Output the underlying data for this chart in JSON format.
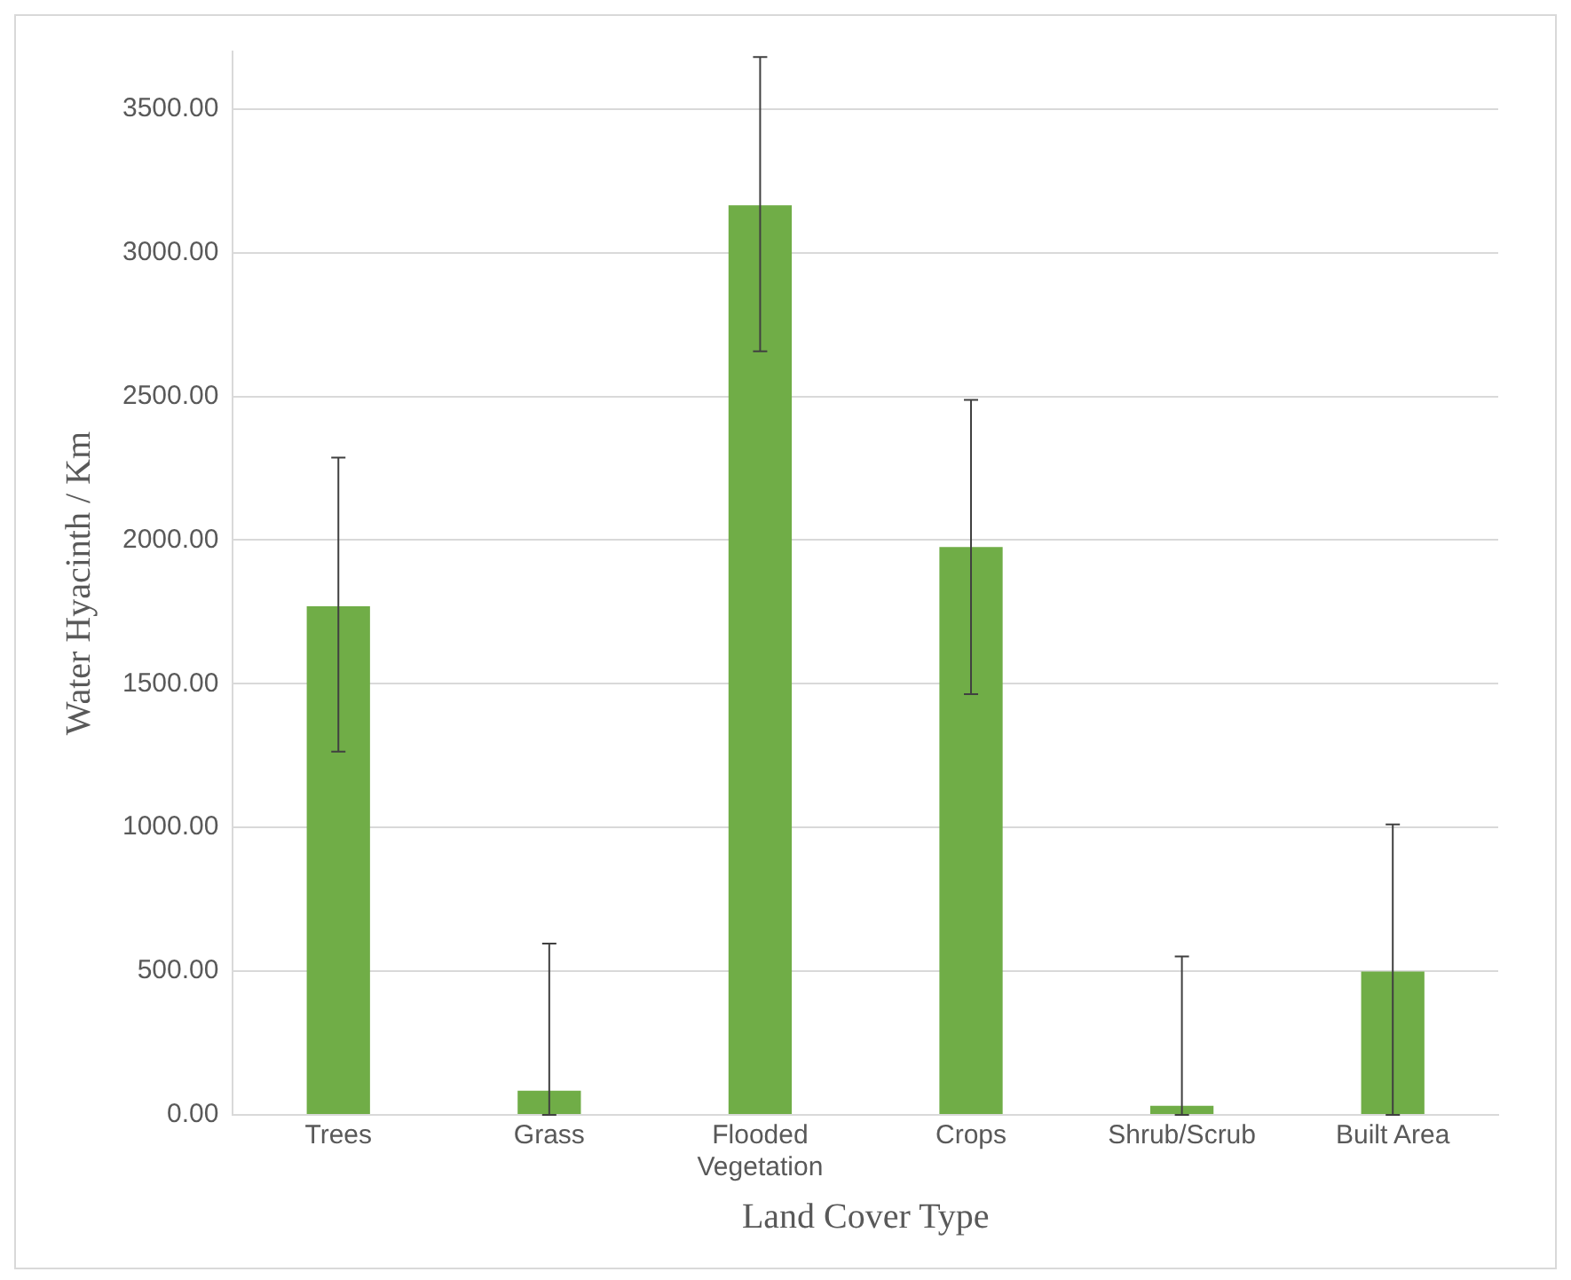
{
  "chart_data": {
    "type": "bar",
    "xlabel": "Land Cover Type",
    "ylabel": "Water Hyacinth / Km",
    "categories": [
      "Trees",
      "Grass",
      "Flooded Vegetation",
      "Crops",
      "Shrub/Scrub",
      "Built Area"
    ],
    "values": [
      1770,
      84,
      3165,
      1976,
      32,
      499
    ],
    "errors": [
      [
        1264,
        2287
      ],
      [
        0,
        596
      ],
      [
        2657,
        3681
      ],
      [
        1464,
        2488
      ],
      [
        0,
        551
      ],
      [
        0,
        1011
      ]
    ],
    "color": "#70ad47",
    "ylim": [
      0,
      3700
    ],
    "yticks": [
      {
        "value": 0,
        "label": "0.00"
      },
      {
        "value": 500,
        "label": "500.00"
      },
      {
        "value": 1000,
        "label": "1000.00"
      },
      {
        "value": 1500,
        "label": "1500.00"
      },
      {
        "value": 2000,
        "label": "2000.00"
      },
      {
        "value": 2500,
        "label": "2500.00"
      },
      {
        "value": 3000,
        "label": "3000.00"
      },
      {
        "value": 3500,
        "label": "3500.00"
      }
    ],
    "grid": "y",
    "legend": false
  }
}
